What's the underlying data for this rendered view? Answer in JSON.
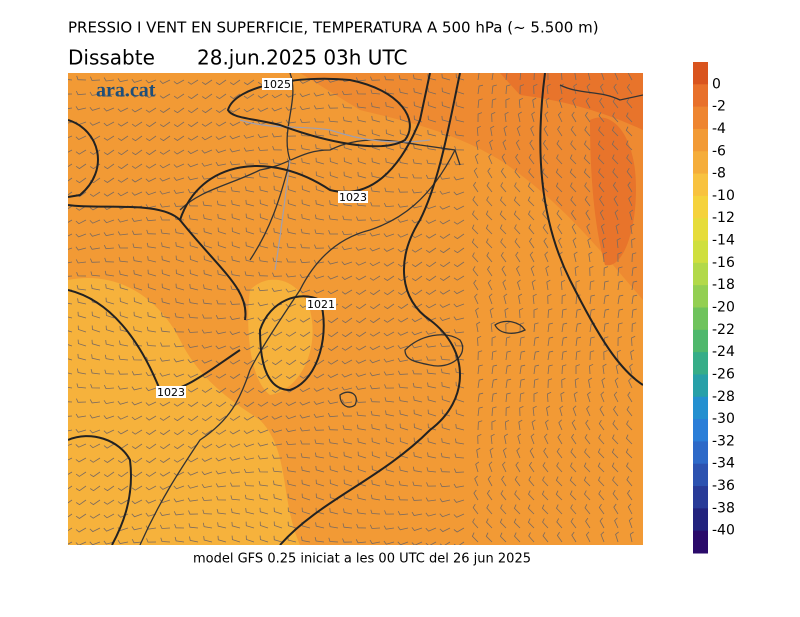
{
  "title": "PRESSIO I VENT EN SUPERFICIE, TEMPERATURA A 500 hPa (~ 5.500 m)",
  "subtitle": {
    "day": "Dissabte",
    "date": "28.jun.2025 03h UTC"
  },
  "logo": "ara.cat",
  "footer": "model GFS 0.25 iniciat a les 00 UTC del 26 jun 2025",
  "isobar_labels": [
    "1025",
    "1023",
    "1021",
    "1023"
  ],
  "colorbar": {
    "labels": [
      0,
      -2,
      -4,
      -6,
      -8,
      -10,
      -12,
      -14,
      -16,
      -18,
      -20,
      -22,
      -24,
      -26,
      -28,
      -30,
      -32,
      -34,
      -36,
      -38,
      -40
    ],
    "colors": [
      "#d9541e",
      "#e8702a",
      "#ee8530",
      "#f29a35",
      "#f5ad3a",
      "#f8c23f",
      "#f5d23c",
      "#e6dc3a",
      "#cfdf3e",
      "#b2d949",
      "#93cf52",
      "#6fc35c",
      "#4fb86c",
      "#36ad88",
      "#27a0a8",
      "#2490d0",
      "#2a7ed8",
      "#2d69c8",
      "#2c52b0",
      "#283b98",
      "#22237e",
      "#2a0a6a"
    ]
  }
}
